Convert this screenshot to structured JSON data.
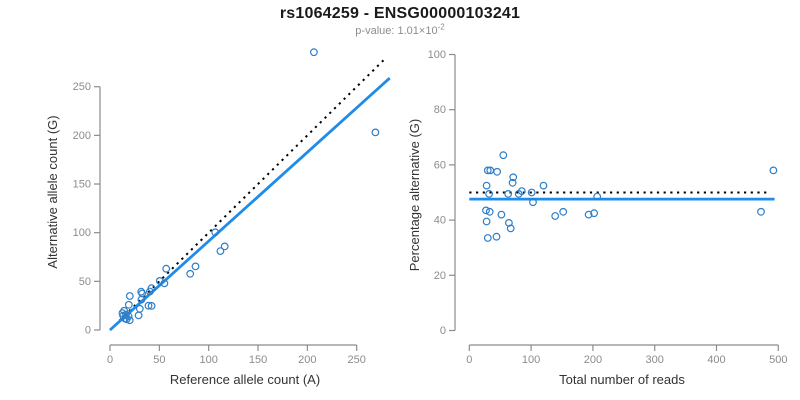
{
  "header": {
    "title": "rs1064259 - ENSG00000103241",
    "subtitle_prefix": "p-value: 1.01×10",
    "subtitle_exponent": "-2"
  },
  "colors": {
    "point_stroke": "#2e7ec8",
    "fit_line": "#1e8ce8",
    "reference_line": "#000000",
    "axis": "#8c8c8c",
    "tick_text": "#8c8c8c",
    "axis_title_text": "#333333"
  },
  "chart_data": [
    {
      "type": "scatter",
      "name": "allele-counts",
      "xlabel": "Reference allele count (A)",
      "ylabel": "Alternative allele count (G)",
      "xlim": [
        0,
        272
      ],
      "ylim": [
        0,
        290
      ],
      "xticks": [
        0,
        50,
        100,
        150,
        200,
        250
      ],
      "yticks": [
        0,
        50,
        100,
        150,
        200,
        250
      ],
      "grid": false,
      "legend": "none",
      "points": [
        [
          13.3,
          14.7
        ],
        [
          12.6,
          17.4
        ],
        [
          14.3,
          19.7
        ],
        [
          19.1,
          25.9
        ],
        [
          20.1,
          34.9
        ],
        [
          32.6,
          37.5
        ],
        [
          31.6,
          39.4
        ],
        [
          31.8,
          31.2
        ],
        [
          16.2,
          15.8
        ],
        [
          15.3,
          11.7
        ],
        [
          18.8,
          14.2
        ],
        [
          16.9,
          11.1
        ],
        [
          20.0,
          10.1
        ],
        [
          29.0,
          15.0
        ],
        [
          30.2,
          21.8
        ],
        [
          39.0,
          25.0
        ],
        [
          42.2,
          24.8
        ],
        [
          40.4,
          39.6
        ],
        [
          42.1,
          42.9
        ],
        [
          50.5,
          50.5
        ],
        [
          55.1,
          47.9
        ],
        [
          57.0,
          63.0
        ],
        [
          81.3,
          57.7
        ],
        [
          86.6,
          65.4
        ],
        [
          111.9,
          81.1
        ],
        [
          116.2,
          85.9
        ],
        [
          106.6,
          100.4
        ],
        [
          269.0,
          203.0
        ],
        [
          206.6,
          285.4
        ]
      ],
      "lines": [
        {
          "name": "identity-line",
          "style": "dotted",
          "color_key": "reference_line",
          "from": [
            0,
            0
          ],
          "to": [
            280,
            280
          ]
        },
        {
          "name": "fit-line",
          "style": "solid",
          "color_key": "fit_line",
          "from": [
            0,
            0
          ],
          "to": [
            283.5,
            258.9
          ]
        }
      ]
    },
    {
      "type": "scatter",
      "name": "percentage-alternative",
      "xlabel": "Total number of reads",
      "ylabel": "Percentage alternative (G)",
      "xlim": [
        0,
        500
      ],
      "ylim": [
        0,
        100
      ],
      "xticks": [
        0,
        100,
        200,
        300,
        400,
        500
      ],
      "yticks": [
        0,
        20,
        40,
        60,
        80,
        100
      ],
      "grid": false,
      "legend": "none",
      "points": [
        [
          28,
          52.5
        ],
        [
          30,
          58
        ],
        [
          34,
          58
        ],
        [
          45,
          57.5
        ],
        [
          55,
          63.5
        ],
        [
          70,
          53.5
        ],
        [
          71,
          55.5
        ],
        [
          63,
          49.5
        ],
        [
          32,
          49.5
        ],
        [
          27,
          43.5
        ],
        [
          33,
          43
        ],
        [
          28,
          39.5
        ],
        [
          30,
          33.5
        ],
        [
          44,
          34
        ],
        [
          52,
          42
        ],
        [
          64,
          39
        ],
        [
          67,
          37
        ],
        [
          80,
          49.5
        ],
        [
          85,
          50.5
        ],
        [
          101,
          50
        ],
        [
          103,
          46.5
        ],
        [
          120,
          52.5
        ],
        [
          139,
          41.5
        ],
        [
          152,
          43
        ],
        [
          193,
          42
        ],
        [
          202,
          42.5
        ],
        [
          207,
          48.5
        ],
        [
          472,
          43
        ],
        [
          492,
          58
        ]
      ],
      "lines": [
        {
          "name": "expected-50pct-line",
          "style": "dotted",
          "color_key": "reference_line",
          "from": [
            0,
            50
          ],
          "to": [
            484,
            50
          ]
        },
        {
          "name": "fit-line",
          "style": "solid",
          "color_key": "fit_line",
          "from": [
            0,
            47.6
          ],
          "to": [
            494,
            47.6
          ]
        }
      ]
    }
  ]
}
